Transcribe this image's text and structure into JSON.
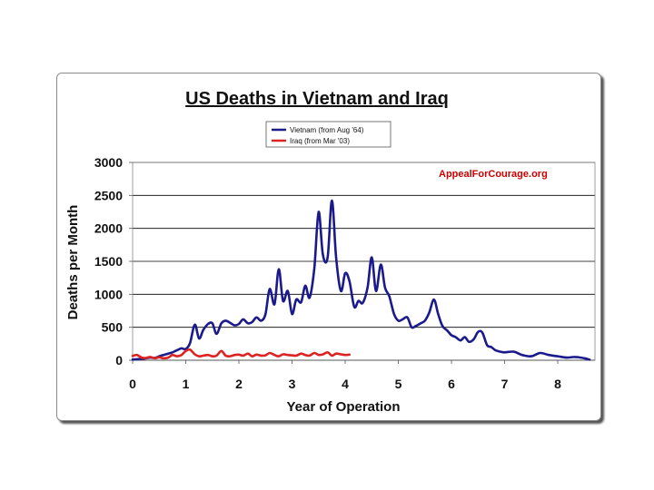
{
  "chart_data": {
    "type": "line",
    "title": "US Deaths in Vietnam and Iraq",
    "xlabel": "Year of Operation",
    "ylabel": "Deaths per Month",
    "xlim": [
      0,
      8.7
    ],
    "ylim": [
      0,
      3000
    ],
    "x_ticks": [
      "0",
      "1",
      "2",
      "3",
      "4",
      "5",
      "6",
      "7",
      "8"
    ],
    "y_ticks": [
      "3000",
      "2500",
      "2000",
      "1500",
      "1000",
      "500",
      "0"
    ],
    "grid": true,
    "legend_position": "top",
    "source_label": "AppealForCourage.org",
    "colors": {
      "vietnam": "#1a1a8c",
      "iraq": "#dd2222",
      "source": "#cc0000",
      "grid": "#000000"
    },
    "series": [
      {
        "name": "Vietnam (from Aug '64)",
        "x": [
          0,
          0.08,
          0.17,
          0.25,
          0.33,
          0.42,
          0.5,
          0.58,
          0.67,
          0.75,
          0.83,
          0.92,
          1.0,
          1.08,
          1.17,
          1.25,
          1.33,
          1.42,
          1.5,
          1.58,
          1.67,
          1.75,
          1.83,
          1.92,
          2.0,
          2.08,
          2.17,
          2.25,
          2.33,
          2.42,
          2.5,
          2.58,
          2.67,
          2.75,
          2.83,
          2.92,
          3.0,
          3.08,
          3.17,
          3.25,
          3.33,
          3.42,
          3.5,
          3.58,
          3.67,
          3.75,
          3.83,
          3.92,
          4.0,
          4.08,
          4.17,
          4.25,
          4.33,
          4.42,
          4.5,
          4.58,
          4.67,
          4.75,
          4.83,
          4.92,
          5.0,
          5.08,
          5.17,
          5.25,
          5.33,
          5.42,
          5.5,
          5.58,
          5.67,
          5.75,
          5.83,
          5.92,
          6.0,
          6.08,
          6.17,
          6.25,
          6.33,
          6.42,
          6.5,
          6.58,
          6.67,
          6.75,
          6.83,
          6.92,
          7.0,
          7.17,
          7.33,
          7.5,
          7.67,
          7.83,
          8.0,
          8.17,
          8.33,
          8.5,
          8.6
        ],
        "values": [
          10,
          15,
          20,
          30,
          40,
          35,
          60,
          80,
          100,
          120,
          150,
          180,
          170,
          260,
          540,
          330,
          460,
          550,
          560,
          400,
          560,
          600,
          570,
          530,
          550,
          620,
          560,
          580,
          650,
          600,
          700,
          1080,
          850,
          1380,
          900,
          1050,
          700,
          920,
          880,
          1130,
          950,
          1400,
          2250,
          1600,
          1560,
          2420,
          1550,
          1050,
          1320,
          1200,
          810,
          900,
          870,
          1100,
          1560,
          1050,
          1450,
          1100,
          970,
          700,
          600,
          620,
          650,
          500,
          520,
          560,
          600,
          720,
          920,
          700,
          520,
          450,
          380,
          350,
          300,
          350,
          280,
          320,
          430,
          420,
          230,
          200,
          150,
          130,
          120,
          130,
          80,
          60,
          110,
          80,
          60,
          40,
          50,
          30,
          10
        ]
      },
      {
        "name": "Iraq (from Mar '03)",
        "x": [
          0,
          0.08,
          0.17,
          0.25,
          0.33,
          0.42,
          0.5,
          0.58,
          0.67,
          0.75,
          0.83,
          0.92,
          1.0,
          1.08,
          1.17,
          1.25,
          1.33,
          1.42,
          1.5,
          1.58,
          1.67,
          1.75,
          1.83,
          1.92,
          2.0,
          2.08,
          2.17,
          2.25,
          2.33,
          2.42,
          2.5,
          2.58,
          2.67,
          2.75,
          2.83,
          2.92,
          3.0,
          3.08,
          3.17,
          3.25,
          3.33,
          3.42,
          3.5,
          3.58,
          3.67,
          3.75,
          3.83,
          3.92,
          4.0,
          4.08
        ],
        "values": [
          65,
          80,
          40,
          35,
          50,
          30,
          45,
          30,
          40,
          80,
          60,
          80,
          140,
          160,
          90,
          60,
          70,
          80,
          60,
          70,
          140,
          70,
          60,
          80,
          85,
          70,
          100,
          60,
          85,
          70,
          75,
          110,
          80,
          60,
          90,
          80,
          75,
          70,
          100,
          80,
          70,
          110,
          80,
          90,
          120,
          70,
          100,
          90,
          80,
          85
        ]
      }
    ]
  }
}
